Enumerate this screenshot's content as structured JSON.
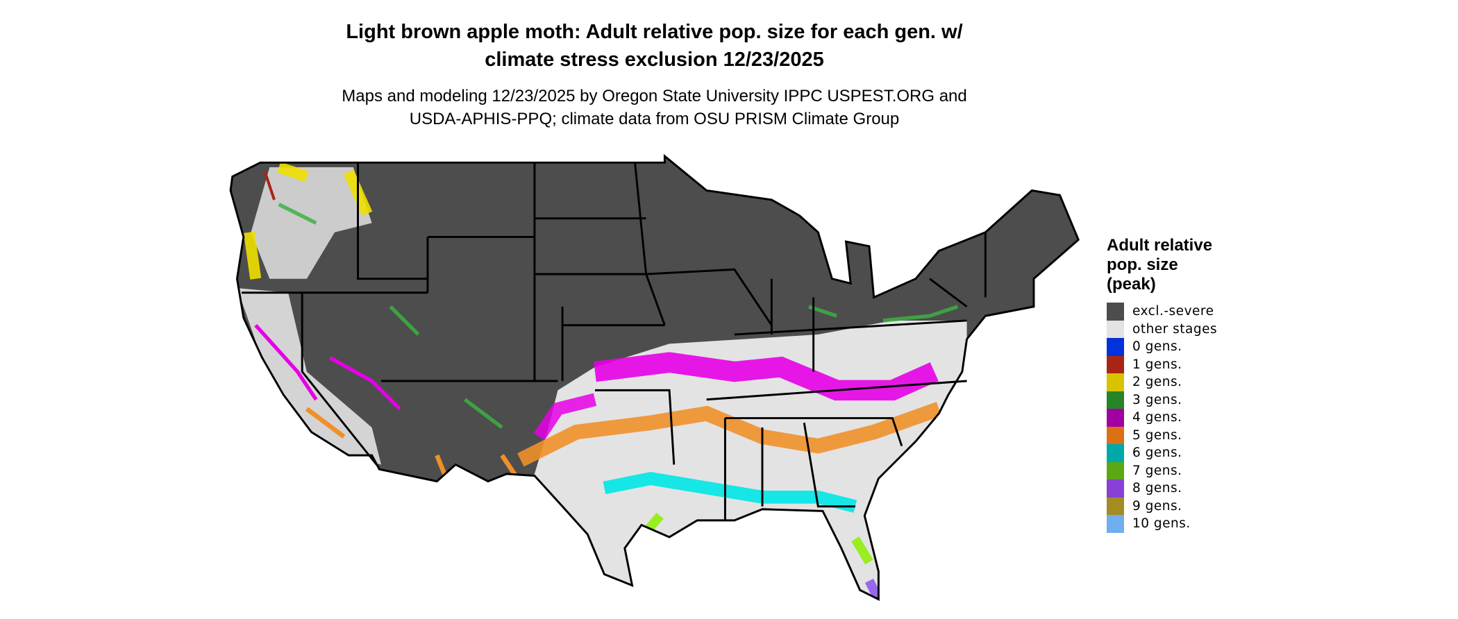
{
  "title": "Light brown apple moth: Adult relative pop. size for each gen. w/ climate stress exclusion 12/23/2025",
  "title_line1": "Light brown apple moth: Adult relative pop. size for each gen. w/",
  "title_line2": "climate stress exclusion 12/23/2025",
  "subtitle_line1": "Maps and modeling 12/23/2025 by Oregon State University IPPC USPEST.ORG and",
  "subtitle_line2": "USDA-APHIS-PPQ; climate data from OSU PRISM Climate Group",
  "legend": {
    "title_line1": "Adult relative",
    "title_line2": "pop. size",
    "title_line3": "(peak)",
    "items": [
      {
        "label": "excl.-severe",
        "color": "#4d4d4d"
      },
      {
        "label": "other stages",
        "color": "#e3e3e3"
      },
      {
        "label": "0 gens.",
        "color": "#0033d9"
      },
      {
        "label": "1 gens.",
        "color": "#a82515"
      },
      {
        "label": "2 gens.",
        "color": "#d9c300"
      },
      {
        "label": "3 gens.",
        "color": "#268526"
      },
      {
        "label": "4 gens.",
        "color": "#a300a3"
      },
      {
        "label": "5 gens.",
        "color": "#db7014"
      },
      {
        "label": "6 gens.",
        "color": "#00a8a8"
      },
      {
        "label": "7 gens.",
        "color": "#5ca814"
      },
      {
        "label": "8 gens.",
        "color": "#8840d6"
      },
      {
        "label": "9 gens.",
        "color": "#a38c24"
      },
      {
        "label": "10 gens.",
        "color": "#70aef0"
      }
    ]
  },
  "map_colors": {
    "land_excluded": "#4d4d4d",
    "other_stages": "#e3e3e3",
    "purple_band": "#e600e6",
    "orange_band": "#f0902a",
    "cyan_band": "#00e6e6",
    "green_spots": "#3cb043",
    "yellow_coast": "#f0e000",
    "lime_band": "#99ee22",
    "violet_tip": "#9966ee"
  }
}
